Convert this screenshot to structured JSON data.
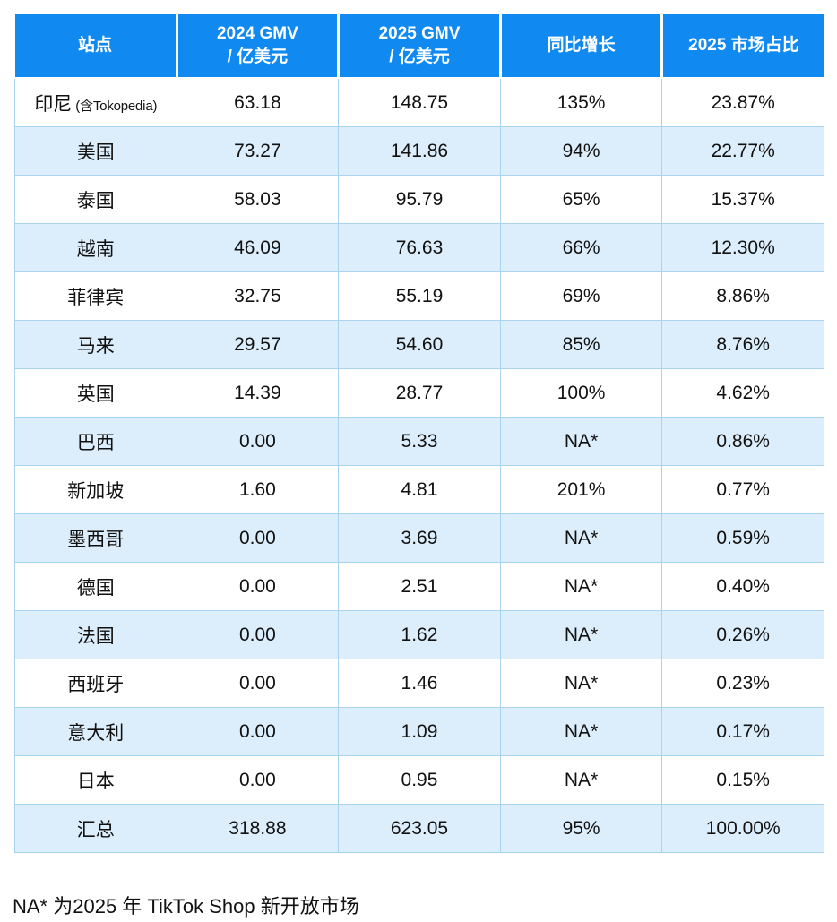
{
  "chart_data": {
    "type": "table",
    "title": "",
    "columns": [
      "站点",
      "2024 GMV / 亿美元",
      "2025 GMV / 亿美元",
      "同比增长",
      "2025 市场占比"
    ],
    "rows": [
      [
        "印尼 (含Tokopedia)",
        "63.18",
        "148.75",
        "135%",
        "23.87%"
      ],
      [
        "美国",
        "73.27",
        "141.86",
        "94%",
        "22.77%"
      ],
      [
        "泰国",
        "58.03",
        "95.79",
        "65%",
        "15.37%"
      ],
      [
        "越南",
        "46.09",
        "76.63",
        "66%",
        "12.30%"
      ],
      [
        "菲律宾",
        "32.75",
        "55.19",
        "69%",
        "8.86%"
      ],
      [
        "马来",
        "29.57",
        "54.60",
        "85%",
        "8.76%"
      ],
      [
        "英国",
        "14.39",
        "28.77",
        "100%",
        "4.62%"
      ],
      [
        "巴西",
        "0.00",
        "5.33",
        "NA*",
        "0.86%"
      ],
      [
        "新加坡",
        "1.60",
        "4.81",
        "201%",
        "0.77%"
      ],
      [
        "墨西哥",
        "0.00",
        "3.69",
        "NA*",
        "0.59%"
      ],
      [
        "德国",
        "0.00",
        "2.51",
        "NA*",
        "0.40%"
      ],
      [
        "法国",
        "0.00",
        "1.62",
        "NA*",
        "0.26%"
      ],
      [
        "西班牙",
        "0.00",
        "1.46",
        "NA*",
        "0.23%"
      ],
      [
        "意大利",
        "0.00",
        "1.09",
        "NA*",
        "0.17%"
      ],
      [
        "日本",
        "0.00",
        "0.95",
        "NA*",
        "0.15%"
      ],
      [
        "汇总",
        "318.88",
        "623.05",
        "95%",
        "100.00%"
      ]
    ],
    "footnote": "NA* 为2025 年 TikTok Shop 新开放市场",
    "layout": {
      "grid": "on",
      "alternating_rows": true,
      "header_position": "top"
    }
  },
  "table": {
    "header": [
      {
        "line1": "站点",
        "line2": ""
      },
      {
        "line1": "2024 GMV",
        "line2": "/ 亿美元"
      },
      {
        "line1": "2025 GMV",
        "line2": "/ 亿美元"
      },
      {
        "line1": "同比增长",
        "line2": ""
      },
      {
        "line1": "2025 市场占比",
        "line2": ""
      }
    ],
    "rows": [
      {
        "site": "印尼",
        "note": "(含Tokopedia)",
        "gmv2024": "63.18",
        "gmv2025": "148.75",
        "yoy": "135%",
        "share": "23.87%"
      },
      {
        "site": "美国",
        "note": "",
        "gmv2024": "73.27",
        "gmv2025": "141.86",
        "yoy": "94%",
        "share": "22.77%"
      },
      {
        "site": "泰国",
        "note": "",
        "gmv2024": "58.03",
        "gmv2025": "95.79",
        "yoy": "65%",
        "share": "15.37%"
      },
      {
        "site": "越南",
        "note": "",
        "gmv2024": "46.09",
        "gmv2025": "76.63",
        "yoy": "66%",
        "share": "12.30%"
      },
      {
        "site": "菲律宾",
        "note": "",
        "gmv2024": "32.75",
        "gmv2025": "55.19",
        "yoy": "69%",
        "share": "8.86%"
      },
      {
        "site": "马来",
        "note": "",
        "gmv2024": "29.57",
        "gmv2025": "54.60",
        "yoy": "85%",
        "share": "8.76%"
      },
      {
        "site": "英国",
        "note": "",
        "gmv2024": "14.39",
        "gmv2025": "28.77",
        "yoy": "100%",
        "share": "4.62%"
      },
      {
        "site": "巴西",
        "note": "",
        "gmv2024": "0.00",
        "gmv2025": "5.33",
        "yoy": "NA*",
        "share": "0.86%"
      },
      {
        "site": "新加坡",
        "note": "",
        "gmv2024": "1.60",
        "gmv2025": "4.81",
        "yoy": "201%",
        "share": "0.77%"
      },
      {
        "site": "墨西哥",
        "note": "",
        "gmv2024": "0.00",
        "gmv2025": "3.69",
        "yoy": "NA*",
        "share": "0.59%"
      },
      {
        "site": "德国",
        "note": "",
        "gmv2024": "0.00",
        "gmv2025": "2.51",
        "yoy": "NA*",
        "share": "0.40%"
      },
      {
        "site": "法国",
        "note": "",
        "gmv2024": "0.00",
        "gmv2025": "1.62",
        "yoy": "NA*",
        "share": "0.26%"
      },
      {
        "site": "西班牙",
        "note": "",
        "gmv2024": "0.00",
        "gmv2025": "1.46",
        "yoy": "NA*",
        "share": "0.23%"
      },
      {
        "site": "意大利",
        "note": "",
        "gmv2024": "0.00",
        "gmv2025": "1.09",
        "yoy": "NA*",
        "share": "0.17%"
      },
      {
        "site": "日本",
        "note": "",
        "gmv2024": "0.00",
        "gmv2025": "0.95",
        "yoy": "NA*",
        "share": "0.15%"
      },
      {
        "site": "汇总",
        "note": "",
        "gmv2024": "318.88",
        "gmv2025": "623.05",
        "yoy": "95%",
        "share": "100.00%"
      }
    ]
  },
  "footnote": "NA* 为2025 年 TikTok Shop 新开放市场",
  "colors": {
    "header_bg": "#1089F0",
    "header_text": "#FFFFFF",
    "row_bg": "#FFFFFF",
    "row_alt_bg": "#DCEDFB",
    "border": "#A8D4F0",
    "text": "#111111",
    "footnote_text": "#111111"
  }
}
